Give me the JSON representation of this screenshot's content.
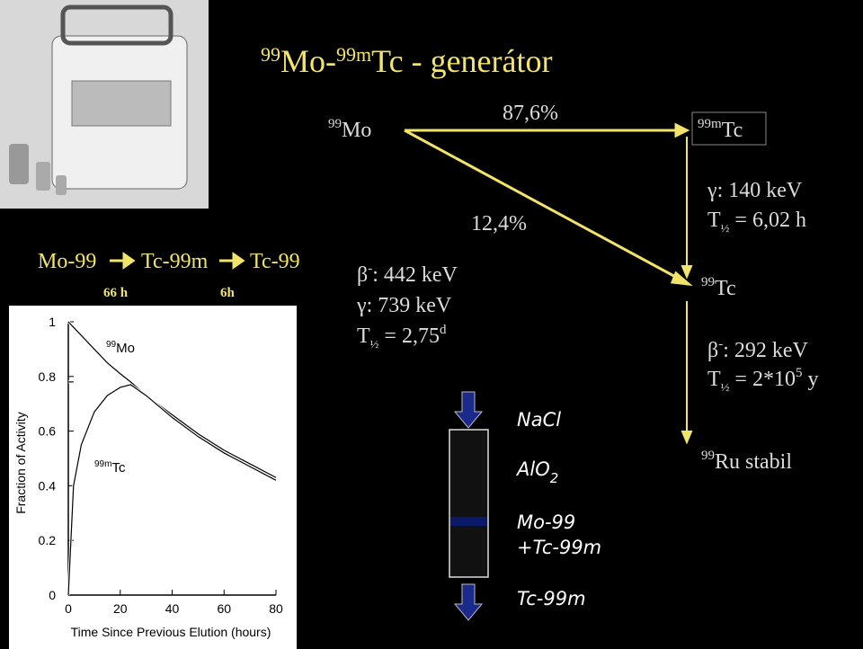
{
  "title": {
    "sup1": "99",
    "part1": "Mo-",
    "sup2": "99m",
    "part2": "Tc - generátor"
  },
  "chain": {
    "nuclides": [
      "Mo-99",
      "Tc-99m",
      "Tc-99"
    ],
    "half_lives": [
      "66 h",
      "6h"
    ]
  },
  "graph": {
    "x_label": "Time Since Previous Elution (hours)",
    "y_label": "Fraction of Activity",
    "xlim": [
      0,
      80
    ],
    "ylim": [
      0,
      1
    ],
    "xticks": [
      0,
      20,
      40,
      60,
      80
    ],
    "yticks": [
      0,
      0.2,
      0.4,
      0.6,
      0.8,
      1
    ],
    "x": [
      0,
      2,
      5,
      10,
      15,
      20,
      24,
      30,
      40,
      50,
      60,
      70,
      80
    ],
    "series": [
      {
        "mass": "99",
        "name": "Mo",
        "values": [
          1,
          0.98,
          0.95,
          0.9,
          0.85,
          0.81,
          0.78,
          0.73,
          0.66,
          0.59,
          0.53,
          0.48,
          0.43
        ]
      },
      {
        "mass": "99m",
        "name": "Tc",
        "values": [
          0,
          0.4,
          0.55,
          0.67,
          0.73,
          0.76,
          0.77,
          0.73,
          0.65,
          0.58,
          0.52,
          0.47,
          0.42
        ]
      }
    ],
    "guide": {
      "x": [
        0,
        24
      ],
      "values": [
        0.78,
        0.78
      ]
    }
  },
  "decay": {
    "parent": {
      "mass": "99",
      "name": "Mo",
      "beta": {
        "symbol": "β",
        "charge": "-",
        "text": ": 442 keV"
      },
      "gamma": "γ: 739 keV",
      "half_life": {
        "symbol": "T",
        "sub": "½",
        "text": " = 2,75",
        "unit": "d"
      }
    },
    "branches": [
      "87,6%",
      "12,4%"
    ],
    "metastable": {
      "mass": "99m",
      "name": "Tc",
      "gamma": "γ: 140 keV",
      "half_life": {
        "symbol": "T",
        "sub": "½",
        "text": " = 6,02 h"
      }
    },
    "daughter": {
      "mass": "99",
      "name": "Tc",
      "beta": {
        "symbol": "β",
        "charge": "-",
        "text": ": 292 keV"
      },
      "half_life": {
        "symbol": "T",
        "sub": "½",
        "text": " = 2*10",
        "exp": "5",
        "unit": " y"
      }
    },
    "final": {
      "mass": "99",
      "name": "Ru stabil"
    }
  },
  "column": {
    "eluent": "NaCl",
    "sorbent": "AlO",
    "sorbent_sub": "2",
    "load1": "Mo-99",
    "load2": "+Tc-99m",
    "eluate": "Tc-99m"
  }
}
